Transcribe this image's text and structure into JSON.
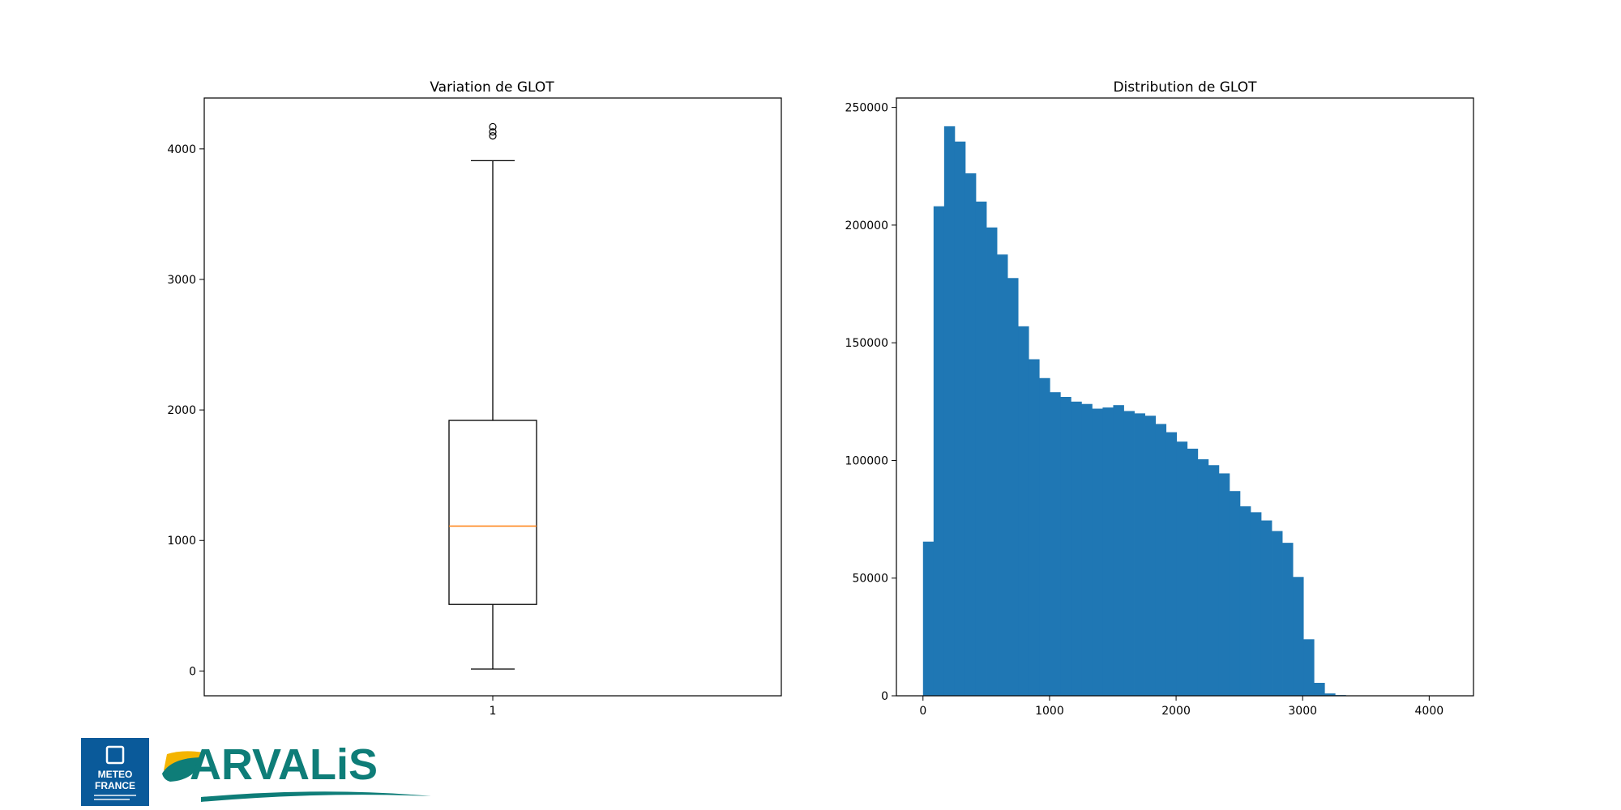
{
  "chart_data": [
    {
      "type": "box",
      "title": "Variation de GLOT",
      "categories": [
        "1"
      ],
      "box": {
        "whisker_low": 15,
        "q1": 510,
        "median": 1110,
        "q3": 1920,
        "whisker_high": 3910
      },
      "fliers": [
        4100,
        4130,
        4170
      ],
      "ylim": [
        -190,
        4390
      ],
      "yticks": [
        0,
        1000,
        2000,
        3000,
        4000
      ],
      "colors": {
        "box": "#000000",
        "median": "#ff7f0e"
      }
    },
    {
      "type": "bar",
      "title": "Distribution de GLOT",
      "bin_width": 83.5,
      "bin_start": 0,
      "values": [
        65500,
        208000,
        242000,
        235500,
        222000,
        210000,
        199000,
        187500,
        177500,
        157000,
        143000,
        135000,
        129000,
        127000,
        125000,
        124000,
        122000,
        122500,
        123500,
        121000,
        120000,
        119000,
        115500,
        112000,
        108000,
        105000,
        100500,
        98000,
        94500,
        87000,
        80500,
        78000,
        74500,
        70000,
        65000,
        50500,
        24000,
        5500,
        1000,
        300,
        100,
        0,
        0,
        0,
        0,
        0,
        0,
        0,
        0,
        0
      ],
      "xlim": [
        -210,
        4350
      ],
      "ylim": [
        0,
        254000
      ],
      "xticks": [
        0,
        1000,
        2000,
        3000,
        4000
      ],
      "yticks": [
        0,
        50000,
        100000,
        150000,
        200000,
        250000
      ],
      "colors": {
        "bars": "#1f77b4"
      }
    }
  ],
  "logos": {
    "meteo_line1": "METEO",
    "meteo_line2": "FRANCE",
    "arvalis_text": "ARVALiS",
    "colors": {
      "meteo_bg": "#0a5a9a",
      "arvalis_teal": "#0e7d78",
      "arvalis_yellow": "#f4b400"
    }
  }
}
